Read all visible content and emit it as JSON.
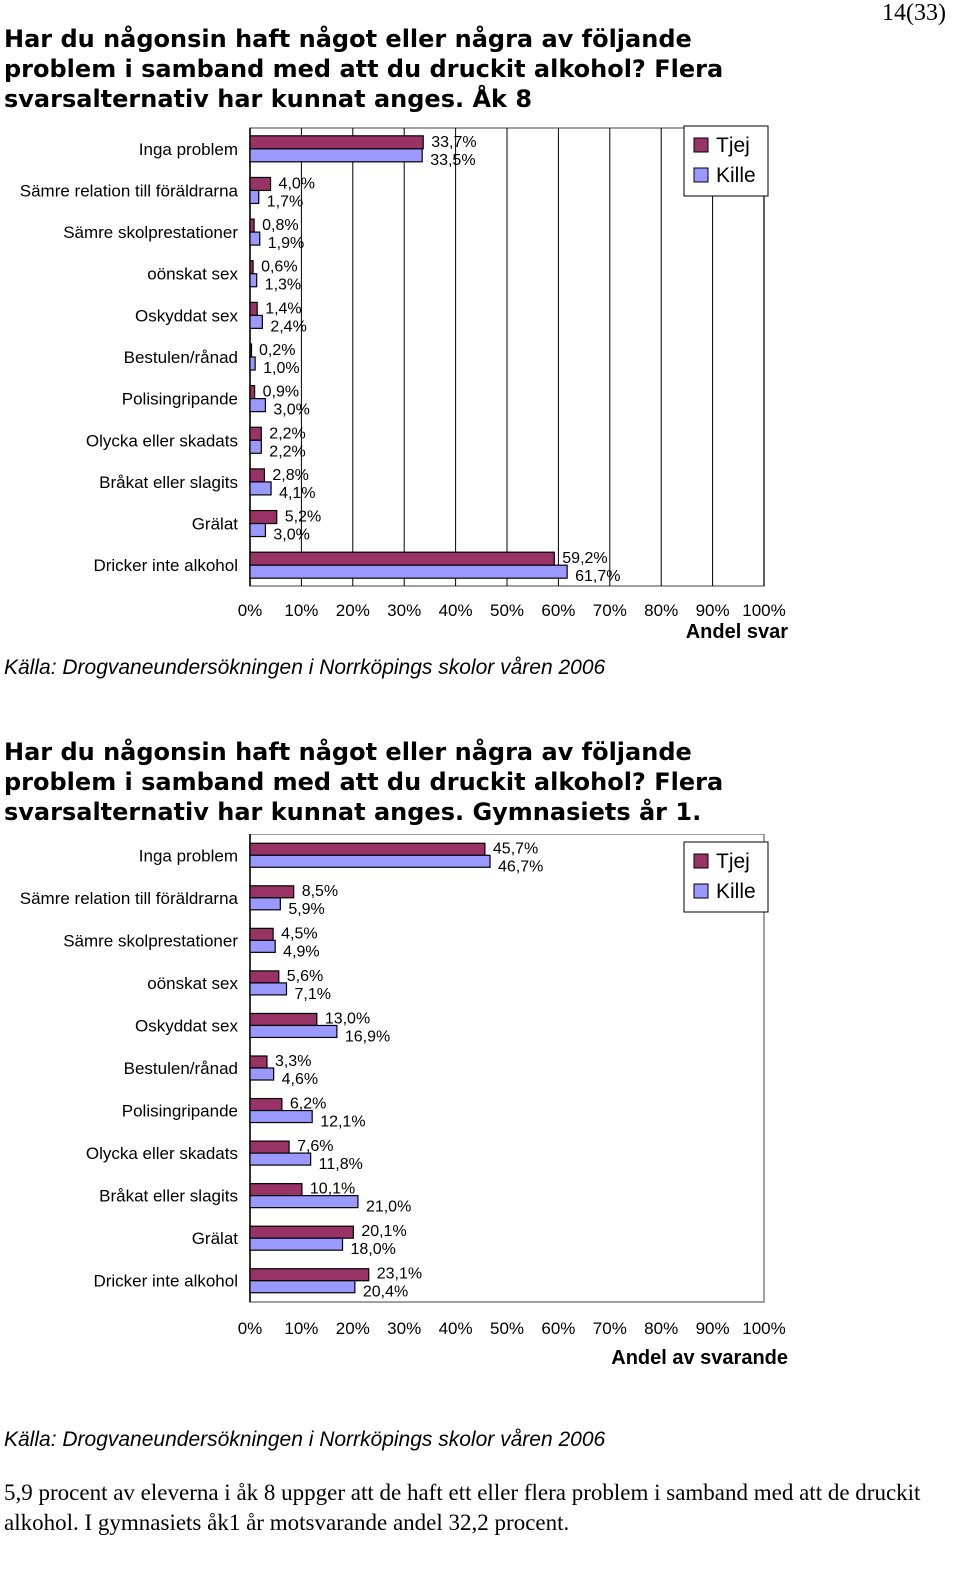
{
  "page_number": "14(33)",
  "chart_data": [
    {
      "type": "bar",
      "orientation": "horizontal",
      "title": "Har du någonsin haft något eller några av följande problem i samband med att du druckit alkohol? Flera svarsalternativ har kunnat anges. Åk 8",
      "categories": [
        "Inga problem",
        "Sämre relation till föräldrarna",
        "Sämre skolprestationer",
        "oönskat sex",
        "Oskyddat sex",
        "Bestulen/rånad",
        "Polisingripande",
        "Olycka eller skadats",
        "Bråkat eller slagits",
        "Grälat",
        "Dricker inte alkohol"
      ],
      "series": [
        {
          "name": "Tjej",
          "color": "#993366",
          "values": [
            33.7,
            4.0,
            0.8,
            0.6,
            1.4,
            0.2,
            0.9,
            2.2,
            2.8,
            5.2,
            59.2
          ],
          "labels": [
            "33,7%",
            "4,0%",
            "0,8%",
            "0,6%",
            "1,4%",
            "0,2%",
            "0,9%",
            "2,2%",
            "2,8%",
            "5,2%",
            "59,2%"
          ]
        },
        {
          "name": "Kille",
          "color": "#9999ff",
          "values": [
            33.5,
            1.7,
            1.9,
            1.3,
            2.4,
            1.0,
            3.0,
            2.2,
            4.1,
            3.0,
            61.7
          ],
          "labels": [
            "33,5%",
            "1,7%",
            "1,9%",
            "1,3%",
            "2,4%",
            "1,0%",
            "3,0%",
            "2,2%",
            "4,1%",
            "3,0%",
            "61,7%"
          ]
        }
      ],
      "xlim": [
        0,
        100
      ],
      "xticks": [
        "0%",
        "10%",
        "20%",
        "30%",
        "40%",
        "50%",
        "60%",
        "70%",
        "80%",
        "90%",
        "100%"
      ],
      "xlabel": "Andel svar",
      "legend_position": "top-right",
      "grid": true,
      "source": "Källa: Drogvaneundersökningen i Norrköpings skolor våren 2006"
    },
    {
      "type": "bar",
      "orientation": "horizontal",
      "title": "Har du någonsin haft något eller några av följande problem i samband med att du druckit alkohol? Flera svarsalternativ har kunnat anges. Gymnasiets år 1.",
      "categories": [
        "Inga problem",
        "Sämre relation till föräldrarna",
        "Sämre skolprestationer",
        "oönskat sex",
        "Oskyddat sex",
        "Bestulen/rånad",
        "Polisingripande",
        "Olycka eller skadats",
        "Bråkat eller slagits",
        "Grälat",
        "Dricker inte alkohol"
      ],
      "series": [
        {
          "name": "Tjej",
          "color": "#993366",
          "values": [
            45.7,
            8.5,
            4.5,
            5.6,
            13.0,
            3.3,
            6.2,
            7.6,
            10.1,
            20.1,
            23.1
          ],
          "labels": [
            "45,7%",
            "8,5%",
            "4,5%",
            "5,6%",
            "13,0%",
            "3,3%",
            "6,2%",
            "7,6%",
            "10,1%",
            "20,1%",
            "23,1%"
          ]
        },
        {
          "name": "Kille",
          "color": "#9999ff",
          "values": [
            46.7,
            5.9,
            4.9,
            7.1,
            16.9,
            4.6,
            12.1,
            11.8,
            21.0,
            18.0,
            20.4
          ],
          "labels": [
            "46,7%",
            "5,9%",
            "4,9%",
            "7,1%",
            "16,9%",
            "4,6%",
            "12,1%",
            "11,8%",
            "21,0%",
            "18,0%",
            "20,4%"
          ]
        }
      ],
      "xlim": [
        0,
        100
      ],
      "xticks": [
        "0%",
        "10%",
        "20%",
        "30%",
        "40%",
        "50%",
        "60%",
        "70%",
        "80%",
        "90%",
        "100%"
      ],
      "xlabel": "Andel av svarande",
      "legend_position": "top-right",
      "grid": false,
      "source": "Källa: Drogvaneundersökningen i Norrköpings skolor våren 2006"
    }
  ],
  "footer_text": "5,9 procent av eleverna i åk 8 uppger att de haft ett eller flera problem i samband med att de druckit alkohol. I gymnasiets åk1 år motsvarande andel 32,2 procent."
}
